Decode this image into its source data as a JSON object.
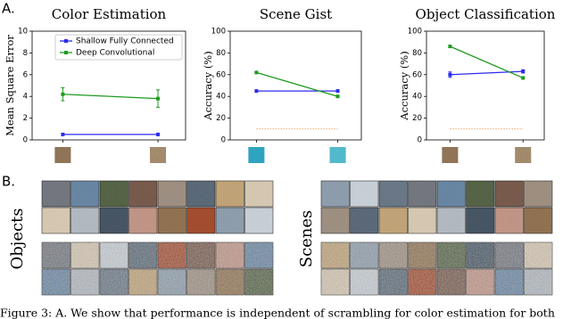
{
  "panel_labels": [
    "A.",
    "B."
  ],
  "chart_data": [
    {
      "type": "line",
      "title": "Color Estimation",
      "y_label": "Mean Square Error",
      "categories": [
        null,
        null
      ],
      "ylim": [
        0,
        10
      ],
      "yticks": [
        0,
        2,
        4,
        6,
        8,
        10
      ],
      "legend": "upper left",
      "series": [
        {
          "name": "Shallow Fully Connected",
          "color": "#2b2bf0",
          "values": [
            0.5,
            0.5
          ]
        },
        {
          "name": "Deep Convolutional",
          "color": "#1f9a1f",
          "values": [
            4.2,
            3.8
          ],
          "errors": [
            0.6,
            0.8
          ]
        }
      ]
    },
    {
      "type": "line",
      "title": "Scene Gist",
      "y_label": "Accuracy (%)",
      "categories": [
        null,
        null
      ],
      "ylim": [
        0,
        100
      ],
      "yticks": [
        0,
        20,
        40,
        60,
        80,
        100
      ],
      "series": [
        {
          "color": "#2b2bf0",
          "values": [
            45,
            45
          ]
        },
        {
          "color": "#1f9a1f",
          "values": [
            62,
            40
          ]
        },
        {
          "color": "#f0a060",
          "values": [
            10,
            10
          ],
          "dashed": true
        }
      ]
    },
    {
      "type": "line",
      "title": "Object Classification",
      "y_label": "Accuracy (%)",
      "categories": [
        null,
        null
      ],
      "ylim": [
        0,
        100
      ],
      "yticks": [
        0,
        20,
        40,
        60,
        80,
        100
      ],
      "series": [
        {
          "color": "#2b2bf0",
          "values": [
            60,
            63
          ],
          "errors": [
            2.5,
            1.5
          ]
        },
        {
          "color": "#1f9a1f",
          "values": [
            86,
            57
          ]
        },
        {
          "color": "#f0a060",
          "values": [
            10,
            10
          ],
          "dashed": true
        }
      ]
    }
  ],
  "image_grid_labels": [
    "Objects",
    "Scenes"
  ],
  "caption": "Figure 3: A. We show that performance is independent of scrambling for color estimation for both"
}
